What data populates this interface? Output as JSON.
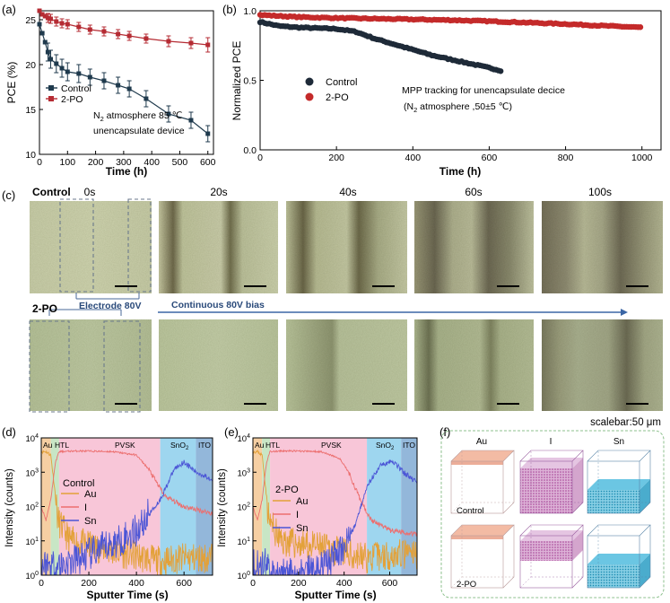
{
  "panel_labels": {
    "a": "(a)",
    "b": "(b)",
    "c": "(c)",
    "d": "(d)",
    "e": "(e)",
    "f": "(f)"
  },
  "chart_data": [
    {
      "id": "a",
      "type": "line",
      "xlabel": "Time (h)",
      "ylabel": "PCE (%)",
      "xlim": [
        0,
        620
      ],
      "ylim": [
        10,
        26
      ],
      "xticks": [
        "0",
        "100",
        "200",
        "300",
        "400",
        "500",
        "600"
      ],
      "yticks": [
        "10",
        "15",
        "20",
        "25"
      ],
      "legend_position": "lower-left",
      "annotation_line1_prefix": "N",
      "annotation_line1_sub": "2",
      "annotation_line1_rest": " atmosphere 85 ℃",
      "annotation_line2": "unencapsulate device",
      "series": [
        {
          "name": "Control",
          "color": "#1f3a4d",
          "x": [
            0,
            10,
            20,
            30,
            40,
            60,
            80,
            100,
            140,
            180,
            230,
            280,
            320,
            380,
            460,
            540,
            600
          ],
          "y": [
            24.5,
            23.5,
            22.5,
            21.4,
            20.6,
            20.1,
            19.6,
            19.2,
            19.0,
            18.6,
            18.2,
            17.7,
            17.3,
            16.2,
            14.5,
            13.8,
            12.3
          ],
          "err": [
            0.5,
            0.8,
            1.0,
            1.0,
            1.0,
            1.0,
            1.0,
            1.0,
            1.0,
            0.9,
            0.9,
            0.9,
            0.9,
            0.9,
            0.9,
            0.9,
            0.9
          ]
        },
        {
          "name": "2-PO",
          "color": "#b52b33",
          "x": [
            0,
            10,
            20,
            30,
            40,
            60,
            80,
            100,
            140,
            180,
            230,
            280,
            320,
            380,
            460,
            540,
            600
          ],
          "y": [
            26.0,
            25.6,
            25.4,
            25.2,
            25.1,
            24.8,
            24.6,
            24.5,
            24.2,
            23.9,
            23.7,
            23.4,
            23.2,
            22.9,
            22.6,
            22.4,
            22.2
          ],
          "err": [
            0.3,
            0.5,
            0.5,
            0.5,
            0.5,
            0.5,
            0.5,
            0.5,
            0.5,
            0.5,
            0.5,
            0.5,
            0.5,
            0.5,
            0.6,
            0.6,
            0.8
          ]
        }
      ]
    },
    {
      "id": "b",
      "type": "scatter",
      "xlabel": "Time (h)",
      "ylabel": "Normalized PCE",
      "xlim": [
        0,
        1050
      ],
      "ylim": [
        0,
        1.0
      ],
      "xticks": [
        "0",
        "200",
        "400",
        "600",
        "800",
        "1000"
      ],
      "yticks": [
        "0.0",
        "0.5",
        "1.0"
      ],
      "legend_position": "center-left",
      "annotation_line1": "MPP tracking for unencapsulate decice",
      "annotation_line2_prefix": "(N",
      "annotation_line2_sub": "2",
      "annotation_line2_rest": " atmosphere ,50±5 ℃)",
      "series": [
        {
          "name": "Control",
          "color": "#1e2a38",
          "x": [
            0,
            50,
            100,
            150,
            200,
            250,
            300,
            350,
            400,
            450,
            500,
            550,
            600,
            630
          ],
          "y": [
            0.92,
            0.89,
            0.88,
            0.875,
            0.87,
            0.85,
            0.8,
            0.76,
            0.72,
            0.68,
            0.65,
            0.62,
            0.59,
            0.57
          ]
        },
        {
          "name": "2-PO",
          "color": "#c42a2a",
          "x": [
            0,
            100,
            200,
            300,
            400,
            500,
            600,
            700,
            800,
            900,
            1000
          ],
          "y": [
            0.97,
            0.955,
            0.948,
            0.943,
            0.938,
            0.933,
            0.925,
            0.915,
            0.905,
            0.892,
            0.88
          ]
        }
      ]
    },
    {
      "id": "d",
      "type": "line",
      "xlabel": "Sputter Time (s)",
      "ylabel": "Intensity (counts)",
      "xlim": [
        0,
        720
      ],
      "ylog": [
        0,
        4
      ],
      "xticks": [
        "0",
        "200",
        "400",
        "600"
      ],
      "yticks_base": "10",
      "yticks_exp": [
        "0",
        "1",
        "2",
        "3",
        "4"
      ],
      "layers": [
        {
          "name": "Au",
          "x0": 0,
          "x1": 40,
          "color": "#f6cfa3"
        },
        {
          "name": "HTL",
          "x0": 40,
          "x1": 75,
          "color": "#c8e6c5"
        },
        {
          "name": "PVSK",
          "x0": 75,
          "x1": 500,
          "color": "#f8c6d8"
        },
        {
          "name": "SnO2",
          "x0": 500,
          "x1": 650,
          "color": "#9ed6ef"
        },
        {
          "name": "ITO",
          "x0": 650,
          "x1": 720,
          "color": "#93b7da"
        }
      ],
      "sample_label": "Control",
      "legend": [
        "Au",
        "I",
        "Sn"
      ],
      "series": [
        {
          "name": "Au",
          "color": "#e3a139"
        },
        {
          "name": "I",
          "color": "#ec6f6f"
        },
        {
          "name": "Sn",
          "color": "#4b55d6"
        }
      ]
    },
    {
      "id": "e",
      "type": "line",
      "xlabel": "Sputter Time (s)",
      "ylabel": "Intensity (counts)",
      "xlim": [
        0,
        720
      ],
      "ylog": [
        0,
        4
      ],
      "xticks": [
        "0",
        "200",
        "400",
        "600"
      ],
      "yticks_base": "10",
      "yticks_exp": [
        "0",
        "1",
        "2",
        "3",
        "4"
      ],
      "layers": [
        {
          "name": "Au",
          "x0": 0,
          "x1": 40,
          "color": "#f6cfa3"
        },
        {
          "name": "HTL",
          "x0": 40,
          "x1": 75,
          "color": "#c8e6c5"
        },
        {
          "name": "PVSK",
          "x0": 75,
          "x1": 500,
          "color": "#f8c6d8"
        },
        {
          "name": "SnO2",
          "x0": 500,
          "x1": 650,
          "color": "#9ed6ef"
        },
        {
          "name": "ITO",
          "x0": 650,
          "x1": 720,
          "color": "#93b7da"
        }
      ],
      "sample_label": "2-PO",
      "legend": [
        "Au",
        "I",
        "Sn"
      ],
      "series": [
        {
          "name": "Au",
          "color": "#e3a139"
        },
        {
          "name": "I",
          "color": "#ec6f6f"
        },
        {
          "name": "Sn",
          "color": "#4b55d6"
        }
      ]
    }
  ],
  "layer_label_sno2_prefix": "SnO",
  "layer_label_sno2_sub": "2",
  "panel_c": {
    "row_control": "Control",
    "row_2po": "2-PO",
    "times": [
      "0s",
      "20s",
      "40s",
      "60s",
      "100s"
    ],
    "electrode_label": "Electrode 80V",
    "bias_label": "Continuous 80V bias",
    "scalebar": "scalebar:50 μm"
  },
  "panel_f": {
    "columns": [
      "Au",
      "I",
      "Sn"
    ],
    "rows": [
      "Control",
      "2-PO"
    ],
    "colors": {
      "Au": "#f2b49a",
      "I": "#b7409d",
      "Sn": "#1aa3c9"
    }
  }
}
